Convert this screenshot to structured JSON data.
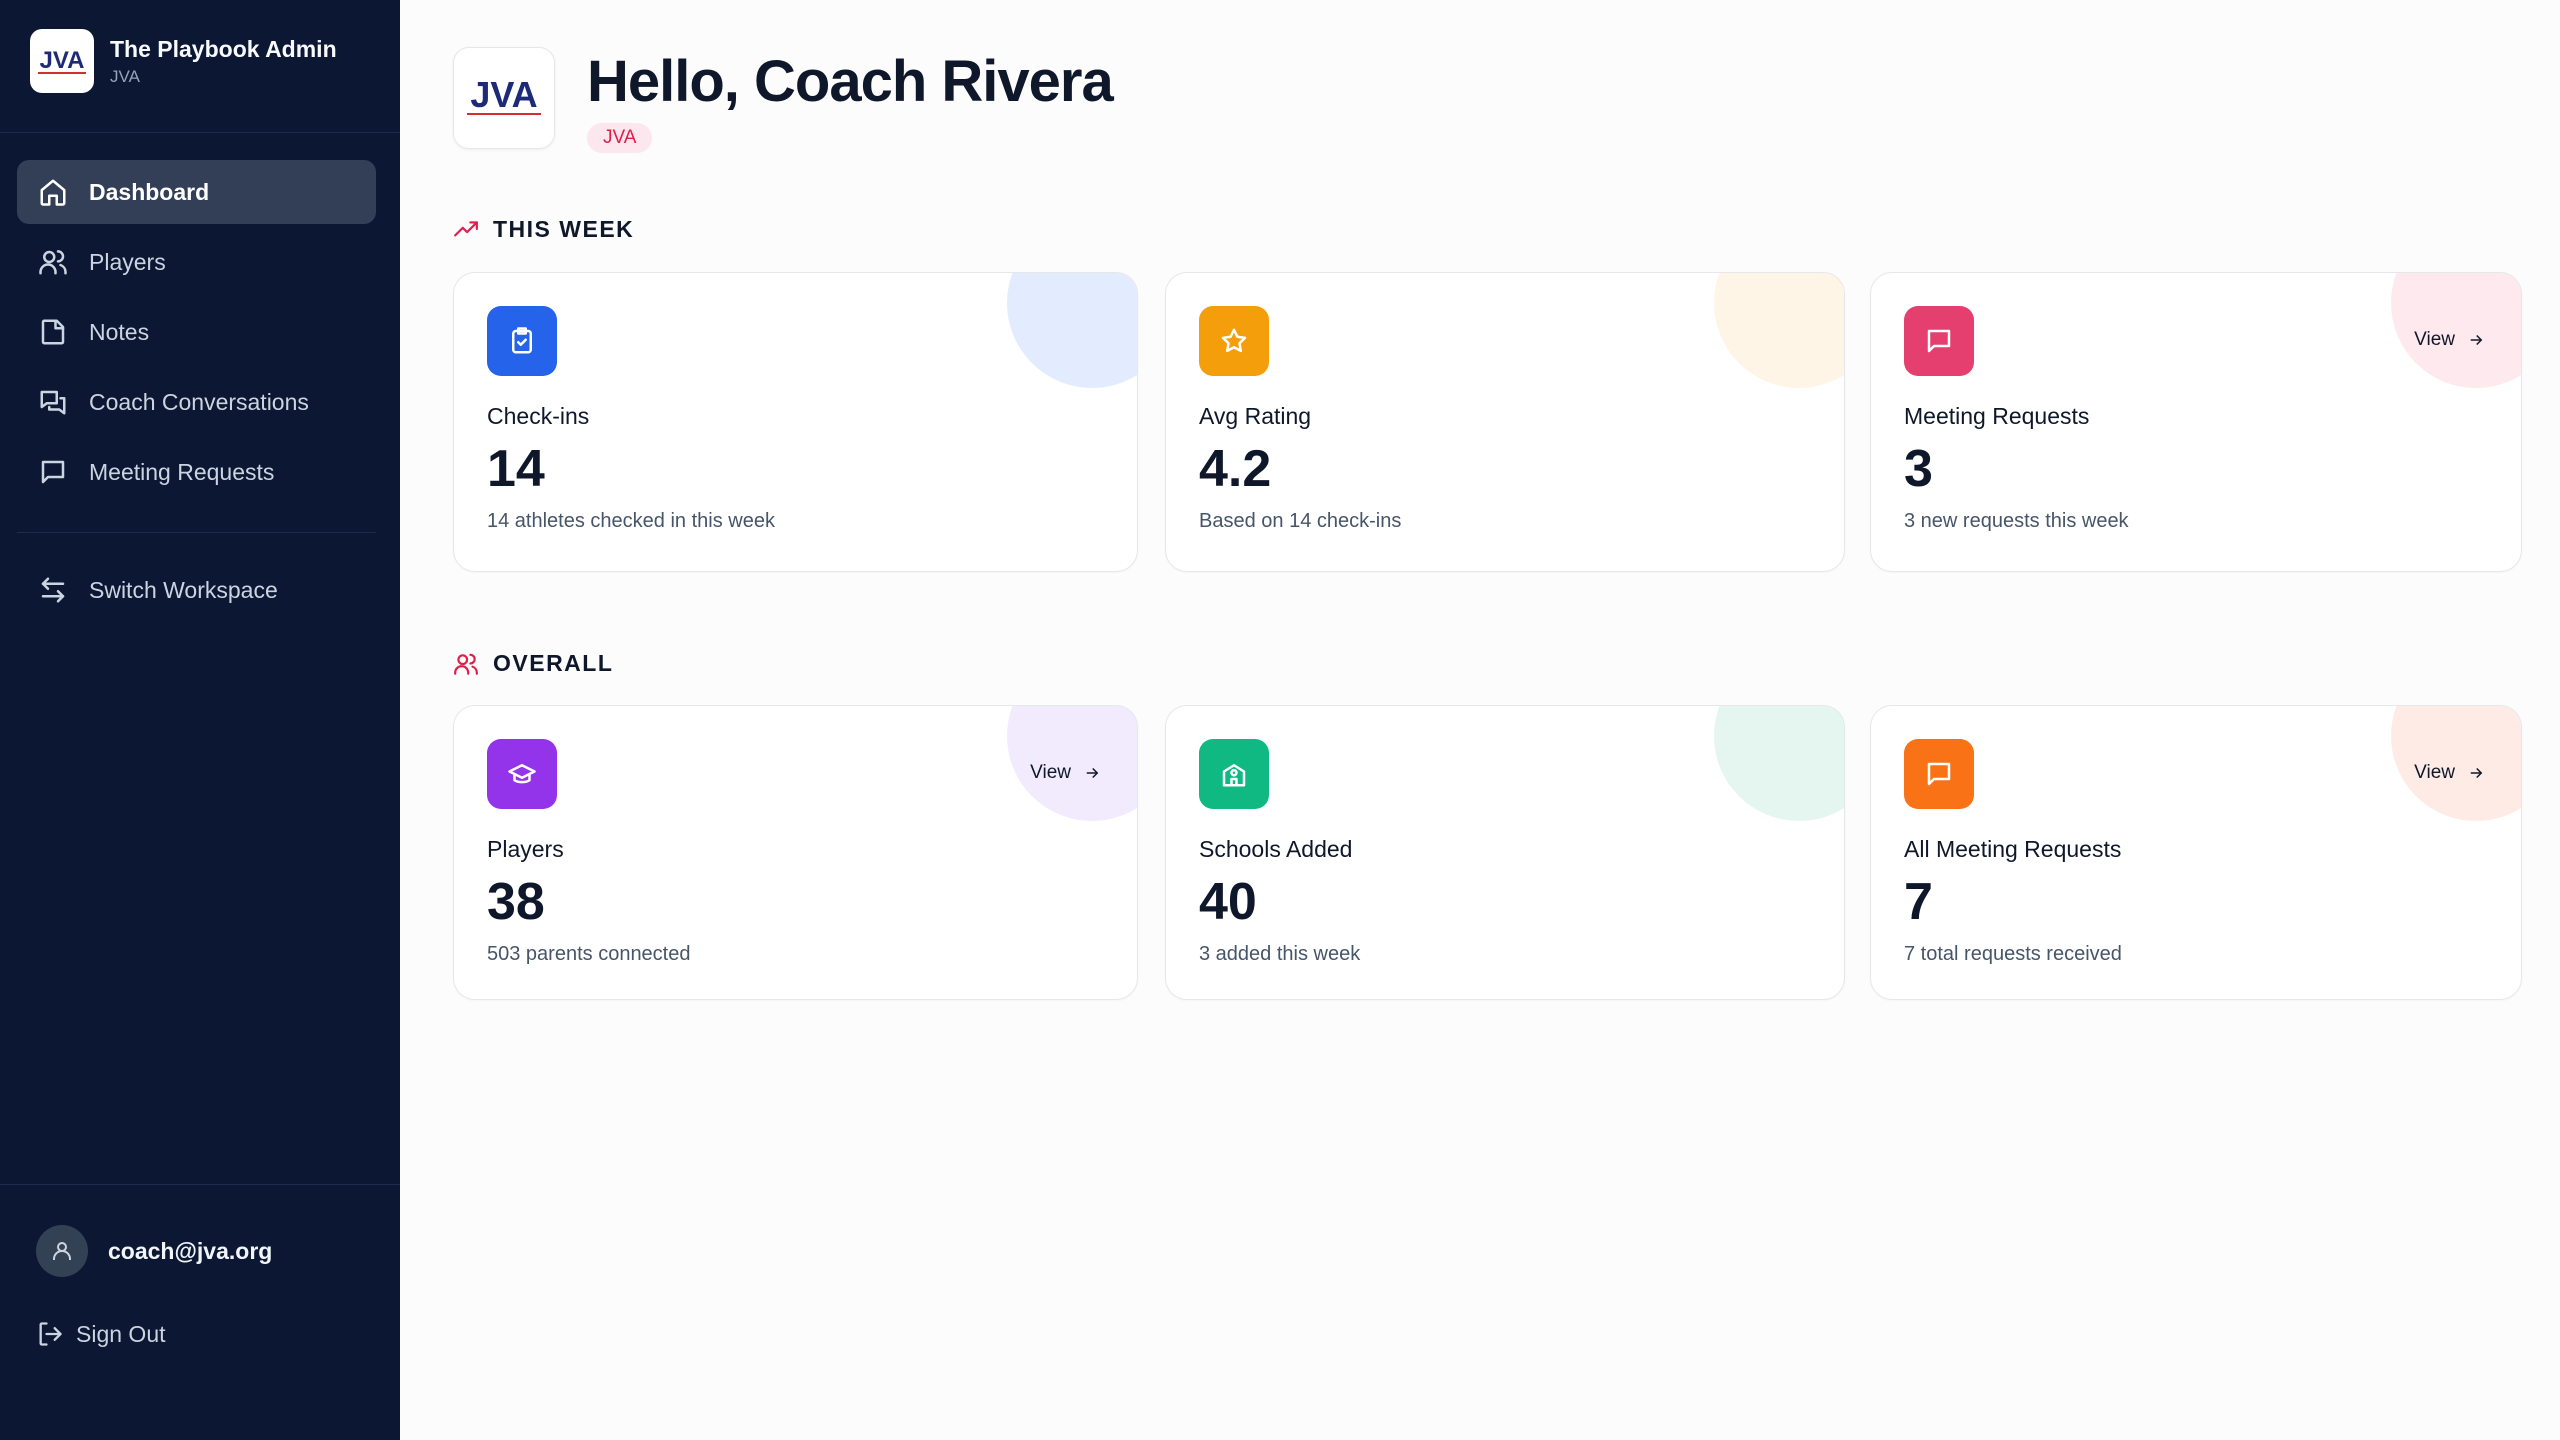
{
  "brand": {
    "title": "The Playbook Admin",
    "subtitle": "JVA",
    "logo_text": "JVA"
  },
  "nav": {
    "items": [
      {
        "label": "Dashboard",
        "icon": "home-icon",
        "active": true
      },
      {
        "label": "Players",
        "icon": "users-icon"
      },
      {
        "label": "Notes",
        "icon": "note-icon"
      },
      {
        "label": "Coach Conversations",
        "icon": "conversations-icon"
      },
      {
        "label": "Meeting Requests",
        "icon": "message-square-icon"
      }
    ],
    "switch_workspace": "Switch Workspace"
  },
  "user": {
    "email": "coach@jva.org",
    "sign_out": "Sign Out"
  },
  "header": {
    "greeting": "Hello, Coach Rivera",
    "org": "JVA"
  },
  "this_week": {
    "title": "THIS WEEK",
    "cards": [
      {
        "label": "Check-ins",
        "value": "14",
        "desc": "14 athletes checked in this week",
        "icon": "clipboard-check-icon",
        "color": "#2563eb"
      },
      {
        "label": "Avg Rating",
        "value": "4.2",
        "desc": "Based on 14 check-ins",
        "icon": "star-icon",
        "color": "#f59e0b"
      },
      {
        "label": "Meeting Requests",
        "value": "3",
        "desc": "3 new requests this week",
        "icon": "message-square-icon",
        "color": "#e11d48",
        "view": "View"
      }
    ]
  },
  "overall": {
    "title": "OVERALL",
    "cards": [
      {
        "label": "Players",
        "value": "38",
        "desc": "503 parents connected",
        "icon": "graduation-cap-icon",
        "color": "#9333ea",
        "view": "View"
      },
      {
        "label": "Schools Added",
        "value": "40",
        "desc": "3 added this week",
        "icon": "school-icon",
        "color": "#10b981"
      },
      {
        "label": "All Meeting Requests",
        "value": "7",
        "desc": "7 total requests received",
        "icon": "message-square-icon",
        "color": "#f97316",
        "view": "View"
      }
    ]
  }
}
